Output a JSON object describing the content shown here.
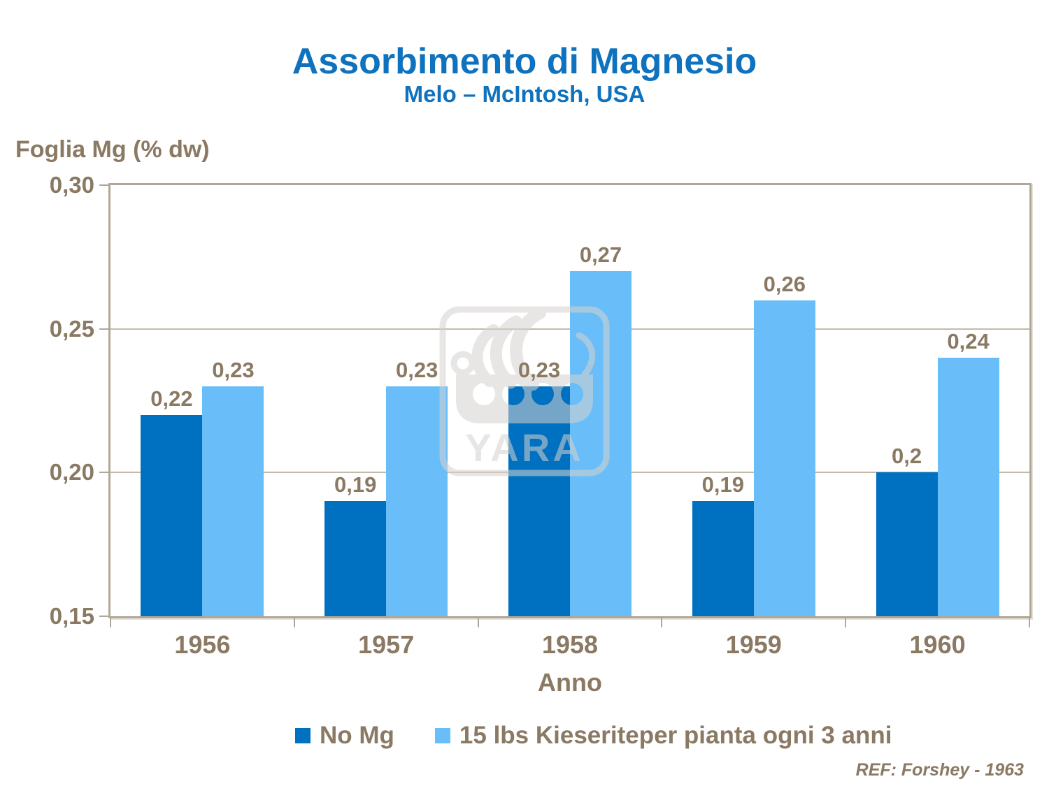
{
  "page": {
    "title": "Assorbimento di Magnesio",
    "subtitle": "Melo – McIntosh, USA",
    "ref": "REF: Forshey - 1963"
  },
  "watermark": {
    "text": "YARA"
  },
  "colors": {
    "title_blue": "#0F72BE",
    "series_dark_blue": "#0070C0",
    "series_light_blue": "#69BDF8",
    "text_brown": "#8A7963",
    "axis_line": "#B1A796",
    "gridline": "#C4BAAA",
    "watermark_gray": "#D6D3CE"
  },
  "chart_data": {
    "type": "bar",
    "title": "Assorbimento di Magnesio",
    "subtitle": "Melo – McIntosh, USA",
    "xlabel": "Anno",
    "ylabel": "Foglia Mg (% dw)",
    "categories": [
      "1956",
      "1957",
      "1958",
      "1959",
      "1960"
    ],
    "series": [
      {
        "name": "No Mg",
        "color": "#0070C0",
        "values": [
          0.22,
          0.19,
          0.23,
          0.19,
          0.2
        ],
        "labels": [
          "0,22",
          "0,19",
          "0,23",
          "0,19",
          "0,2"
        ]
      },
      {
        "name": "15 lbs Kieseriteper pianta ogni 3 anni",
        "color": "#69BDF8",
        "values": [
          0.23,
          0.23,
          0.27,
          0.26,
          0.24
        ],
        "labels": [
          "0,23",
          "0,23",
          "0,27",
          "0,26",
          "0,24"
        ]
      }
    ],
    "ylim": [
      0.15,
      0.3
    ],
    "yticks": [
      {
        "value": 0.3,
        "label": "0,30"
      },
      {
        "value": 0.25,
        "label": "0,25"
      },
      {
        "value": 0.2,
        "label": "0,20"
      },
      {
        "value": 0.15,
        "label": "0,15"
      }
    ],
    "grid": true,
    "legend_position": "bottom",
    "decimal_separator": ","
  }
}
